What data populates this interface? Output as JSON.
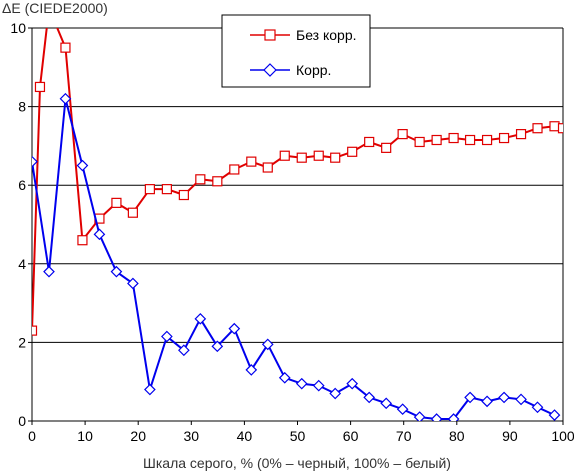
{
  "chart_data": {
    "type": "line",
    "ylabel": "ΔE (CIEDE2000)",
    "xlabel": "Шкала серого, % (0% – черный, 100% – белый)",
    "xlim": [
      0,
      100
    ],
    "ylim": [
      0,
      10
    ],
    "xticks": [
      0,
      10,
      20,
      30,
      40,
      50,
      60,
      70,
      80,
      90,
      100
    ],
    "yticks": [
      0,
      2,
      4,
      6,
      8,
      10
    ],
    "grid": "horizontal",
    "legend_position": "top-center",
    "series": [
      {
        "name": "Без корр.",
        "color": "#e00000",
        "marker": "square",
        "points": [
          [
            0,
            2.3
          ],
          [
            1.5,
            8.5
          ],
          [
            3.2,
            10.5
          ],
          [
            6.3,
            9.5
          ],
          [
            9.5,
            4.6
          ],
          [
            12.7,
            5.15
          ],
          [
            15.9,
            5.55
          ],
          [
            19.0,
            5.3
          ],
          [
            22.2,
            5.9
          ],
          [
            25.4,
            5.9
          ],
          [
            28.6,
            5.75
          ],
          [
            31.7,
            6.15
          ],
          [
            34.9,
            6.1
          ],
          [
            38.1,
            6.4
          ],
          [
            41.3,
            6.6
          ],
          [
            44.4,
            6.45
          ],
          [
            47.6,
            6.75
          ],
          [
            50.8,
            6.7
          ],
          [
            54.0,
            6.75
          ],
          [
            57.1,
            6.7
          ],
          [
            60.3,
            6.85
          ],
          [
            63.5,
            7.1
          ],
          [
            66.7,
            6.95
          ],
          [
            69.8,
            7.3
          ],
          [
            73.0,
            7.1
          ],
          [
            76.2,
            7.15
          ],
          [
            79.4,
            7.2
          ],
          [
            82.5,
            7.15
          ],
          [
            85.7,
            7.15
          ],
          [
            88.9,
            7.2
          ],
          [
            92.1,
            7.3
          ],
          [
            95.2,
            7.45
          ],
          [
            98.4,
            7.5
          ],
          [
            100,
            7.45
          ]
        ]
      },
      {
        "name": "Корр.",
        "color": "#0000ee",
        "marker": "diamond",
        "points": [
          [
            0,
            6.6
          ],
          [
            3.2,
            3.8
          ],
          [
            6.3,
            8.2
          ],
          [
            9.5,
            6.5
          ],
          [
            12.7,
            4.75
          ],
          [
            15.9,
            3.8
          ],
          [
            19.0,
            3.5
          ],
          [
            22.2,
            0.8
          ],
          [
            25.4,
            2.15
          ],
          [
            28.6,
            1.8
          ],
          [
            31.7,
            2.6
          ],
          [
            34.9,
            1.9
          ],
          [
            38.1,
            2.35
          ],
          [
            41.3,
            1.3
          ],
          [
            44.4,
            1.95
          ],
          [
            47.6,
            1.1
          ],
          [
            50.8,
            0.95
          ],
          [
            54.0,
            0.9
          ],
          [
            57.1,
            0.7
          ],
          [
            60.3,
            0.95
          ],
          [
            63.5,
            0.6
          ],
          [
            66.7,
            0.45
          ],
          [
            69.8,
            0.3
          ],
          [
            73.0,
            0.1
          ],
          [
            76.2,
            0.05
          ],
          [
            79.4,
            0.05
          ],
          [
            82.5,
            0.6
          ],
          [
            85.7,
            0.5
          ],
          [
            88.9,
            0.6
          ],
          [
            92.1,
            0.55
          ],
          [
            95.2,
            0.35
          ],
          [
            98.4,
            0.15
          ]
        ]
      }
    ]
  }
}
